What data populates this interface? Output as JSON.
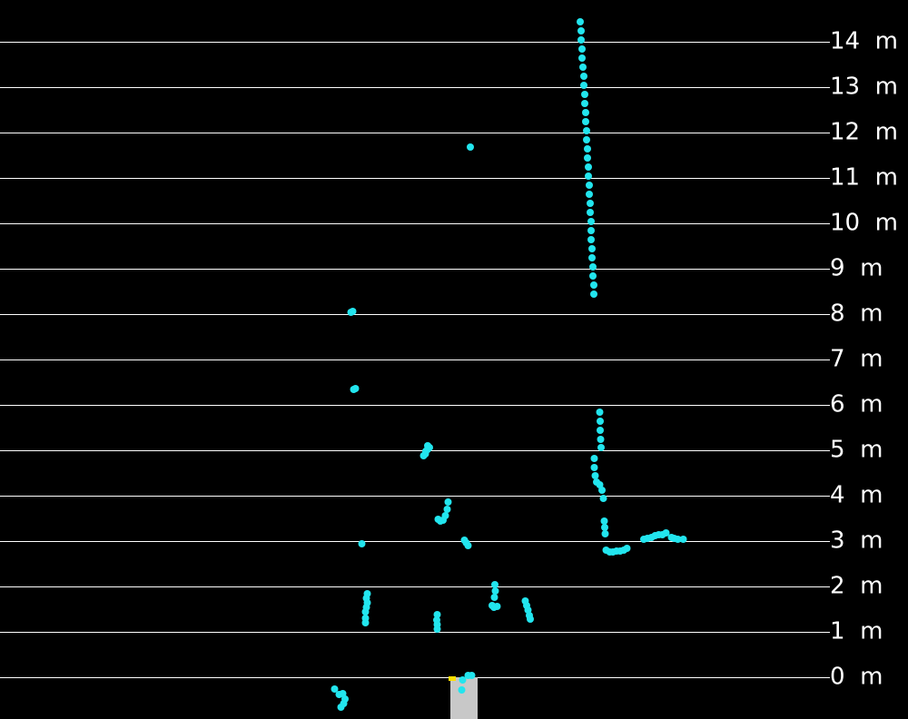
{
  "chart_data": {
    "type": "scatter",
    "title": "",
    "xlabel": "",
    "ylabel": "",
    "ylim": [
      0,
      14
    ],
    "grid": true,
    "y_ticks": [
      {
        "value": 0,
        "label": "0 m"
      },
      {
        "value": 1,
        "label": "1 m"
      },
      {
        "value": 2,
        "label": "2 m"
      },
      {
        "value": 3,
        "label": "3 m"
      },
      {
        "value": 4,
        "label": "4 m"
      },
      {
        "value": 5,
        "label": "5 m"
      },
      {
        "value": 6,
        "label": "6 m"
      },
      {
        "value": 7,
        "label": "7 m"
      },
      {
        "value": 8,
        "label": "8 m"
      },
      {
        "value": 9,
        "label": "9 m"
      },
      {
        "value": 10,
        "label": "10 m"
      },
      {
        "value": 11,
        "label": "11 m"
      },
      {
        "value": 12,
        "label": "12 m"
      },
      {
        "value": 13,
        "label": "13 m"
      },
      {
        "value": 14,
        "label": "14 m"
      }
    ],
    "xlim": [
      -10,
      10
    ],
    "colors": {
      "points": "#22e5ee",
      "grid": "#ffffff",
      "background": "#000000",
      "sensor": "#c8c8c8",
      "sensor_marker": "#ffe000"
    },
    "series": [
      {
        "points": [
          [
            5.16,
            14.44
          ],
          [
            5.2,
            14.24
          ],
          [
            5.2,
            14.04
          ],
          [
            5.24,
            13.84
          ],
          [
            5.24,
            13.64
          ],
          [
            5.28,
            13.44
          ],
          [
            5.32,
            13.24
          ],
          [
            5.32,
            13.04
          ],
          [
            5.36,
            12.84
          ],
          [
            5.36,
            12.64
          ],
          [
            5.4,
            12.44
          ],
          [
            5.4,
            12.24
          ],
          [
            5.44,
            12.04
          ],
          [
            5.44,
            11.84
          ],
          [
            5.48,
            11.64
          ],
          [
            5.48,
            11.44
          ],
          [
            5.52,
            11.24
          ],
          [
            5.52,
            11.04
          ],
          [
            5.56,
            10.84
          ],
          [
            5.56,
            10.64
          ],
          [
            5.6,
            10.44
          ],
          [
            5.6,
            10.24
          ],
          [
            5.64,
            10.04
          ],
          [
            5.64,
            9.84
          ],
          [
            5.64,
            9.64
          ],
          [
            5.68,
            9.44
          ],
          [
            5.68,
            9.24
          ],
          [
            5.72,
            9.04
          ],
          [
            5.72,
            8.84
          ],
          [
            5.76,
            8.64
          ],
          [
            5.76,
            8.44
          ],
          [
            0.32,
            11.68
          ],
          [
            -4.94,
            8.04
          ],
          [
            -4.86,
            8.06
          ],
          [
            -4.82,
            6.34
          ],
          [
            -4.74,
            6.36
          ],
          [
            -1.64,
            4.98
          ],
          [
            -1.56,
            5.02
          ],
          [
            -1.48,
            5.06
          ],
          [
            -1.56,
            5.1
          ],
          [
            -1.66,
            4.92
          ],
          [
            -1.74,
            4.88
          ],
          [
            -0.66,
            3.86
          ],
          [
            -0.7,
            3.7
          ],
          [
            -0.78,
            3.56
          ],
          [
            -0.88,
            3.46
          ],
          [
            -1,
            3.44
          ],
          [
            -1.1,
            3.48
          ],
          [
            0.06,
            3.02
          ],
          [
            0.14,
            2.96
          ],
          [
            0.22,
            2.9
          ],
          [
            -4.46,
            2.94
          ],
          [
            -4.22,
            1.84
          ],
          [
            -4.26,
            1.74
          ],
          [
            -4.22,
            1.64
          ],
          [
            -4.26,
            1.54
          ],
          [
            -4.3,
            1.44
          ],
          [
            -4.3,
            1.3
          ],
          [
            -4.3,
            1.2
          ],
          [
            -1.14,
            1.38
          ],
          [
            -1.16,
            1.26
          ],
          [
            -1.14,
            1.16
          ],
          [
            -1.14,
            1.06
          ],
          [
            1.4,
            2.04
          ],
          [
            1.42,
            1.9
          ],
          [
            1.38,
            1.76
          ],
          [
            1.5,
            1.56
          ],
          [
            1.36,
            1.54
          ],
          [
            1.28,
            1.58
          ],
          [
            2.74,
            1.68
          ],
          [
            2.8,
            1.58
          ],
          [
            2.86,
            1.48
          ],
          [
            2.92,
            1.36
          ],
          [
            2.96,
            1.28
          ],
          [
            6.02,
            5.84
          ],
          [
            6.04,
            5.64
          ],
          [
            6.04,
            5.44
          ],
          [
            6.06,
            5.24
          ],
          [
            6.08,
            5.06
          ],
          [
            5.78,
            4.82
          ],
          [
            5.78,
            4.62
          ],
          [
            5.82,
            4.44
          ],
          [
            5.88,
            4.3
          ],
          [
            6.02,
            4.24
          ],
          [
            6.12,
            4.12
          ],
          [
            6.18,
            3.94
          ],
          [
            6.22,
            3.44
          ],
          [
            6.24,
            3.3
          ],
          [
            6.26,
            3.16
          ],
          [
            6.3,
            2.8
          ],
          [
            6.46,
            2.76
          ],
          [
            6.6,
            2.76
          ],
          [
            6.76,
            2.78
          ],
          [
            6.92,
            2.78
          ],
          [
            7.08,
            2.8
          ],
          [
            7.22,
            2.84
          ],
          [
            7.96,
            3.04
          ],
          [
            8.12,
            3.06
          ],
          [
            8.3,
            3.08
          ],
          [
            8.46,
            3.12
          ],
          [
            8.62,
            3.14
          ],
          [
            8.78,
            3.14
          ],
          [
            8.94,
            3.18
          ],
          [
            9.18,
            3.08
          ],
          [
            9.3,
            3.06
          ],
          [
            9.46,
            3.04
          ],
          [
            9.7,
            3.04
          ],
          [
            -5.66,
            -0.26
          ],
          [
            -5.46,
            -0.38
          ],
          [
            -5.3,
            -0.36
          ],
          [
            -5.2,
            -0.48
          ],
          [
            -5.26,
            -0.58
          ],
          [
            -5.38,
            -0.66
          ],
          [
            -0.02,
            -0.06
          ],
          [
            -0.06,
            -0.28
          ],
          [
            0.22,
            0.04
          ],
          [
            0.38,
            0.04
          ]
        ]
      }
    ]
  }
}
